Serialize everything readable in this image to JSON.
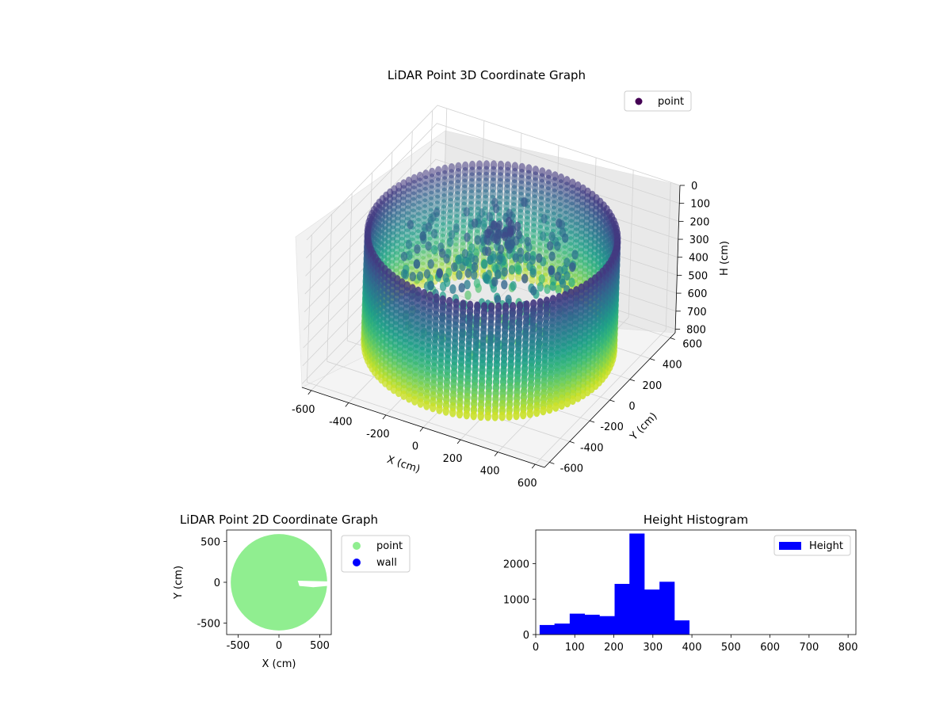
{
  "chart_data": [
    {
      "type": "scatter",
      "subtype": "3d",
      "title": "LiDAR Point 3D Coordinate Graph",
      "xlabel": "X (cm)",
      "ylabel": "Y (cm)",
      "zlabel": "H (cm)",
      "xlim": [
        -650,
        650
      ],
      "ylim": [
        -650,
        650
      ],
      "zlim": [
        0,
        820
      ],
      "z_inverted": true,
      "x_ticks": [
        "-600",
        "-400",
        "-200",
        "0",
        "200",
        "400",
        "600"
      ],
      "y_ticks": [
        "-600",
        "-400",
        "-200",
        "0",
        "200",
        "400",
        "600"
      ],
      "z_ticks": [
        "0",
        "100",
        "200",
        "300",
        "400",
        "500",
        "600",
        "700",
        "800"
      ],
      "colormap": "viridis",
      "legend": {
        "placement": "top-right",
        "entries": [
          {
            "label": "point",
            "color": "#440154"
          }
        ]
      },
      "series": [
        {
          "name": "point",
          "shape": "ring wall",
          "radius": 590,
          "z_range": [
            130,
            760
          ],
          "interior": "scattered points clustered near the center, heights 200-600"
        }
      ],
      "grid": true
    },
    {
      "type": "scatter",
      "title": "LiDAR Point 2D Coordinate Graph",
      "xlabel": "X (cm)",
      "ylabel": "Y (cm)",
      "xlim": [
        -640,
        640
      ],
      "ylim": [
        -640,
        640
      ],
      "x_ticks": [
        "-500",
        "0",
        "500"
      ],
      "y_ticks": [
        "-500",
        "0",
        "500"
      ],
      "legend": {
        "placement": "outside-right",
        "entries": [
          {
            "label": "point",
            "color": "#90ee90"
          },
          {
            "label": "wall",
            "color": "#0000ff"
          }
        ]
      },
      "series": [
        {
          "name": "point",
          "color": "#90ee90",
          "shape": "filled disc",
          "radius": 590
        }
      ],
      "grid": false
    },
    {
      "type": "bar",
      "subtype": "histogram",
      "title": "Height Histogram",
      "xlim": [
        0,
        820
      ],
      "ylim": [
        0,
        2950
      ],
      "x_ticks": [
        "0",
        "100",
        "200",
        "300",
        "400",
        "500",
        "600",
        "700",
        "800"
      ],
      "y_ticks": [
        "0",
        "1000",
        "2000"
      ],
      "legend": {
        "placement": "top-right",
        "entries": [
          {
            "label": "Height",
            "color": "#0000ff"
          }
        ]
      },
      "bar_color": "#0000ff",
      "bins": [
        {
          "x0": 10,
          "x1": 48,
          "value": 270
        },
        {
          "x0": 48,
          "x1": 87,
          "value": 310
        },
        {
          "x0": 87,
          "x1": 125,
          "value": 590
        },
        {
          "x0": 125,
          "x1": 163,
          "value": 560
        },
        {
          "x0": 163,
          "x1": 202,
          "value": 520
        },
        {
          "x0": 202,
          "x1": 240,
          "value": 1430
        },
        {
          "x0": 240,
          "x1": 278,
          "value": 2850
        },
        {
          "x0": 278,
          "x1": 317,
          "value": 1270
        },
        {
          "x0": 317,
          "x1": 355,
          "value": 1490
        },
        {
          "x0": 355,
          "x1": 393,
          "value": 400
        }
      ],
      "grid": false
    }
  ]
}
